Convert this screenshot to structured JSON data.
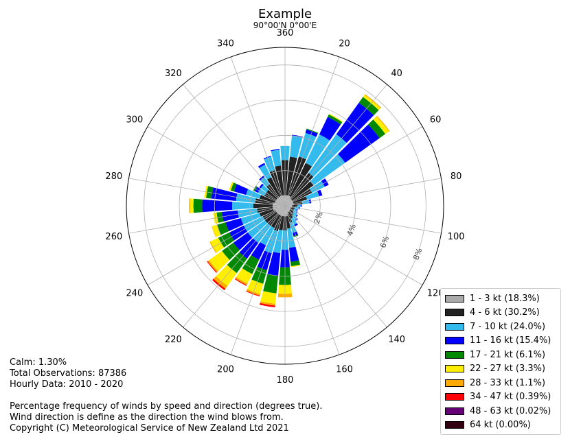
{
  "chart_data": {
    "type": "windrose",
    "title": "Example",
    "subtitle": "90°00'N 0°00'E",
    "direction_ticks": [
      "360",
      "20",
      "40",
      "60",
      "80",
      "100",
      "120",
      "140",
      "160",
      "180",
      "200",
      "220",
      "240",
      "260",
      "280",
      "300",
      "320",
      "340"
    ],
    "radial_ticks": [
      "2%",
      "4%",
      "6%",
      "8%"
    ],
    "rmax_percent": 9,
    "direction_step_deg": 10,
    "speed_bins": [
      {
        "label": "1 - 3 kt (18.3%)",
        "color": "#aaaaaa"
      },
      {
        "label": "4 - 6 kt (30.2%)",
        "color": "#222222"
      },
      {
        "label": "7 - 10 kt (24.0%)",
        "color": "#33bbee"
      },
      {
        "label": "11 - 16 kt (15.4%)",
        "color": "#0000ff"
      },
      {
        "label": "17 - 21 kt (6.1%)",
        "color": "#008800"
      },
      {
        "label": "22 - 27 kt (3.3%)",
        "color": "#ffee00"
      },
      {
        "label": "28 - 33 kt (1.1%)",
        "color": "#ffaa00"
      },
      {
        "label": "34 - 47 kt (0.39%)",
        "color": "#ff0000"
      },
      {
        "label": "48 - 63 kt (0.02%)",
        "color": "#660077"
      },
      {
        "label": "64 kt (0.00%)",
        "color": "#330011"
      }
    ],
    "sectors": [
      {
        "dir": 0,
        "cum": [
          0.6,
          2.6,
          3.4
        ]
      },
      {
        "dir": 10,
        "cum": [
          0.6,
          2.8,
          4.0,
          4.05
        ]
      },
      {
        "dir": 20,
        "cum": [
          0.6,
          2.9,
          4.3,
          4.5,
          4.55
        ]
      },
      {
        "dir": 30,
        "cum": [
          0.6,
          2.7,
          4.5,
          5.6,
          5.75,
          5.8
        ]
      },
      {
        "dir": 40,
        "cum": [
          0.5,
          2.3,
          5.0,
          7.2,
          7.6,
          7.75,
          7.8
        ]
      },
      {
        "dir": 50,
        "cum": [
          0.5,
          2.0,
          4.2,
          6.6,
          7.0,
          7.25,
          7.3
        ]
      },
      {
        "dir": 60,
        "cum": [
          0.5,
          1.7,
          2.5,
          2.75
        ]
      },
      {
        "dir": 70,
        "cum": [
          0.5,
          1.3,
          2.0,
          2.2
        ]
      },
      {
        "dir": 80,
        "cum": [
          0.5,
          1.0,
          1.4,
          1.5
        ]
      },
      {
        "dir": 90,
        "cum": [
          0.4,
          0.7,
          0.9,
          0.95
        ]
      },
      {
        "dir": 100,
        "cum": [
          0.4,
          0.6,
          0.8,
          0.85
        ]
      },
      {
        "dir": 110,
        "cum": [
          0.35,
          0.55,
          0.7,
          0.75
        ]
      },
      {
        "dir": 120,
        "cum": [
          0.35,
          0.55,
          0.75,
          0.8
        ]
      },
      {
        "dir": 130,
        "cum": [
          0.35,
          0.6,
          0.85,
          0.9
        ]
      },
      {
        "dir": 140,
        "cum": [
          0.4,
          0.7,
          1.0,
          1.05
        ]
      },
      {
        "dir": 150,
        "cum": [
          0.4,
          0.8,
          1.2,
          1.3
        ]
      },
      {
        "dir": 160,
        "cum": [
          0.5,
          1.0,
          1.6,
          1.8,
          1.85
        ]
      },
      {
        "dir": 170,
        "cum": [
          0.6,
          1.3,
          2.4,
          3.2,
          3.45,
          3.5
        ]
      },
      {
        "dir": 180,
        "cum": [
          0.6,
          1.4,
          2.5,
          3.5,
          4.5,
          5.0,
          5.2
        ]
      },
      {
        "dir": 190,
        "cum": [
          0.6,
          1.4,
          2.7,
          4.0,
          5.0,
          5.6,
          5.7,
          5.8
        ]
      },
      {
        "dir": 200,
        "cum": [
          0.6,
          1.5,
          2.8,
          3.8,
          4.6,
          5.2,
          5.3,
          5.35
        ]
      },
      {
        "dir": 210,
        "cum": [
          0.6,
          1.4,
          2.5,
          3.4,
          4.3,
          4.9,
          5.0,
          5.05
        ]
      },
      {
        "dir": 220,
        "cum": [
          0.6,
          1.4,
          2.6,
          3.7,
          4.7,
          5.6,
          5.8,
          5.9
        ]
      },
      {
        "dir": 230,
        "cum": [
          0.6,
          1.4,
          2.6,
          3.6,
          4.4,
          5.3,
          5.4,
          5.45
        ]
      },
      {
        "dir": 240,
        "cum": [
          0.6,
          1.4,
          2.6,
          3.5,
          4.2,
          4.7,
          4.75
        ]
      },
      {
        "dir": 250,
        "cum": [
          0.7,
          1.5,
          2.6,
          3.5,
          4.0,
          4.3,
          4.32
        ]
      },
      {
        "dir": 260,
        "cum": [
          0.7,
          1.6,
          2.7,
          3.6,
          3.9,
          4.1
        ]
      },
      {
        "dir": 270,
        "cum": [
          0.7,
          1.8,
          3.0,
          4.7,
          5.2,
          5.4,
          5.45
        ]
      },
      {
        "dir": 280,
        "cum": [
          0.7,
          1.7,
          2.8,
          4.2,
          4.5,
          4.6
        ]
      },
      {
        "dir": 290,
        "cum": [
          0.6,
          1.5,
          2.3,
          3.0,
          3.2,
          3.3
        ]
      },
      {
        "dir": 300,
        "cum": [
          0.6,
          1.3,
          1.7,
          1.9,
          2.0
        ]
      },
      {
        "dir": 310,
        "cum": [
          0.6,
          1.3,
          1.7,
          1.8
        ]
      },
      {
        "dir": 320,
        "cum": [
          0.6,
          1.5,
          2.0,
          2.1
        ]
      },
      {
        "dir": 330,
        "cum": [
          0.6,
          1.8,
          2.6,
          2.7
        ]
      },
      {
        "dir": 340,
        "cum": [
          0.6,
          2.1,
          2.9,
          2.95
        ]
      },
      {
        "dir": 350,
        "cum": [
          0.6,
          2.3,
          3.2,
          3.25
        ]
      }
    ],
    "grid": true,
    "legend_position": "bottom-right"
  },
  "notes": {
    "calm": "Calm: 1.30%",
    "total": "Total Observations: 87386",
    "hourly": "Hourly Data: 2010 - 2020",
    "desc1": "Percentage frequency of winds by speed and direction (degrees true).",
    "desc2": "Wind direction is define as the direction the wind blows from.",
    "copyright": "Copyright (C) Meteorological Service of New Zealand Ltd 2021"
  }
}
